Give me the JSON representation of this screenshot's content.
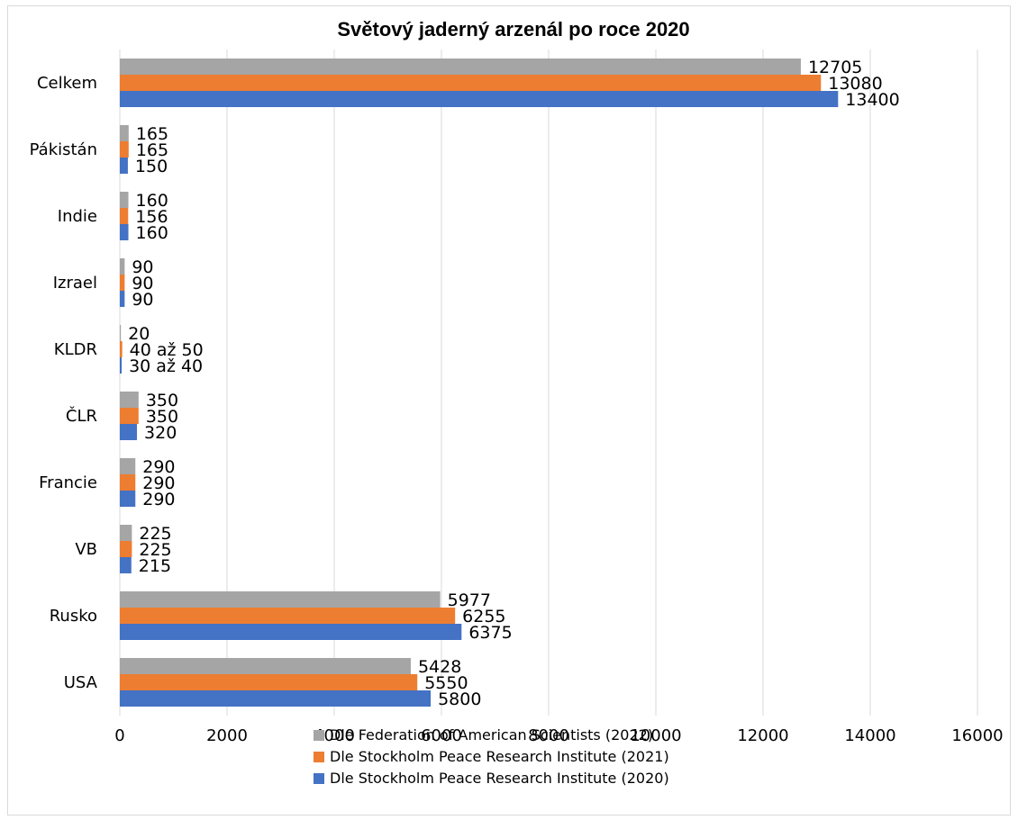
{
  "chart_data": {
    "type": "bar",
    "orientation": "horizontal",
    "title": "Světový jaderný arzenál po roce 2020",
    "categories": [
      "USA",
      "Rusko",
      "VB",
      "Francie",
      "ČLR",
      "KLDR",
      "Izrael",
      "Indie",
      "Pákistán",
      "Celkem"
    ],
    "series": [
      {
        "name": "Dle Stockholm Peace Research Institute (2020)",
        "color": "#4472c4",
        "values": [
          5800,
          6375,
          215,
          290,
          320,
          35,
          90,
          160,
          150,
          13400
        ],
        "labels": [
          "5800",
          "6375",
          "215",
          "290",
          "320",
          "30 až 40",
          "90",
          "160",
          "150",
          "13400"
        ]
      },
      {
        "name": "Dle Stockholm Peace Research Institute (2021)",
        "color": "#ed7d31",
        "values": [
          5550,
          6255,
          225,
          290,
          350,
          45,
          90,
          156,
          165,
          13080
        ],
        "labels": [
          "5550",
          "6255",
          "225",
          "290",
          "350",
          "40 až 50",
          "90",
          "156",
          "165",
          "13080"
        ]
      },
      {
        "name": "Dle Federation of American Scientists (2022)",
        "color": "#a5a5a5",
        "values": [
          5428,
          5977,
          225,
          290,
          350,
          20,
          90,
          160,
          165,
          12705
        ],
        "labels": [
          "5428",
          "5977",
          "225",
          "290",
          "350",
          "20",
          "90",
          "160",
          "165",
          "12705"
        ]
      }
    ],
    "xlim": [
      0,
      16000
    ],
    "xticks": [
      "0",
      "2000",
      "4000",
      "6000",
      "8000",
      "10000",
      "12000",
      "14000",
      "16000"
    ],
    "grid": true,
    "legend_position": "bottom"
  }
}
